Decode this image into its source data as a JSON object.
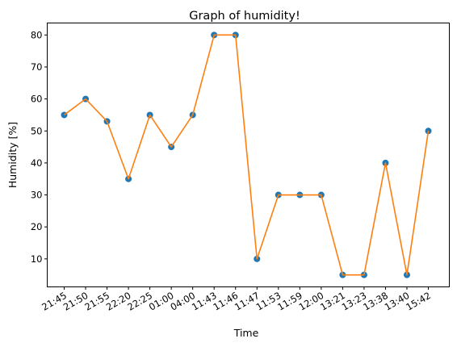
{
  "chart_data": {
    "type": "line",
    "title": "Graph of humidity!",
    "xlabel": "Time",
    "ylabel": "Humidity [%]",
    "categories": [
      "21:45",
      "21:50",
      "21:55",
      "22:20",
      "22:25",
      "01:00",
      "04:00",
      "11:43",
      "11:46",
      "11:47",
      "11:53",
      "11:59",
      "12:00",
      "13:21",
      "13:23",
      "13:38",
      "13:40",
      "15:42"
    ],
    "series": [
      {
        "values": [
          55,
          60,
          53,
          35,
          55,
          45,
          55,
          80,
          80,
          10,
          30,
          30,
          30,
          5,
          5,
          40,
          5,
          50
        ]
      }
    ],
    "ylim": [
      1.25,
      83.75
    ],
    "yticks": [
      10,
      20,
      30,
      40,
      50,
      60,
      70,
      80
    ],
    "grid": false,
    "line_color": "#ff7f0e",
    "marker_color": "#1f77b4"
  }
}
